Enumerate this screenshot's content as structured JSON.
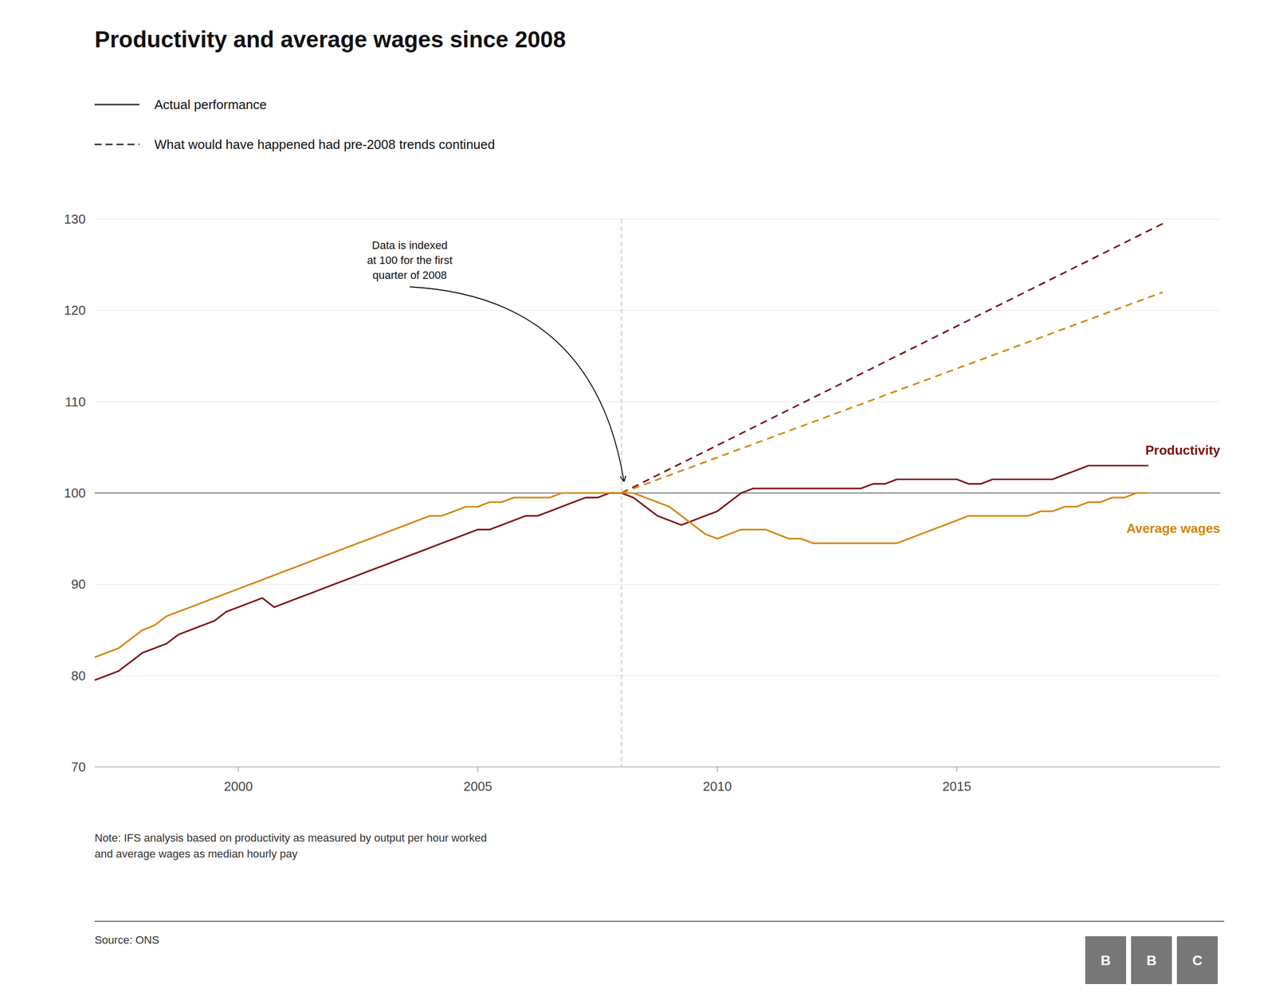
{
  "chart_data": {
    "type": "line",
    "title": "Productivity and average wages since 2008",
    "legend_items": [
      {
        "label": "Actual performance",
        "line_style": "solid"
      },
      {
        "label": "What would have happened had pre-2008 trends continued",
        "line_style": "dashed"
      }
    ],
    "annotation": {
      "text": "Data is indexed\nat 100 for the first\nquarter of 2008",
      "x": 2008.05,
      "y": 101.3
    },
    "note": "Note: IFS analysis based on productivity as measured by output per hour worked\nand average wages as median hourly pay",
    "source": "Source: ONS",
    "logo_letters": [
      "B",
      "B",
      "C"
    ],
    "xlim": [
      1997.0,
      2020.5
    ],
    "ylim": [
      70,
      130
    ],
    "yticks": [
      70,
      80,
      90,
      100,
      110,
      120,
      130
    ],
    "xticks": [
      2000,
      2005,
      2010,
      2015
    ],
    "grid": "y",
    "hline_y": 100,
    "vline_x": 2008.0,
    "series": [
      {
        "name": "Productivity",
        "color": "#7B1515",
        "line_style": "solid",
        "x": [
          1997.0,
          1997.25,
          1997.5,
          1997.75,
          1998.0,
          1998.25,
          1998.5,
          1998.75,
          1999.0,
          1999.25,
          1999.5,
          1999.75,
          2000.0,
          2000.25,
          2000.5,
          2000.75,
          2001.0,
          2001.25,
          2001.5,
          2001.75,
          2002.0,
          2002.25,
          2002.5,
          2002.75,
          2003.0,
          2003.25,
          2003.5,
          2003.75,
          2004.0,
          2004.25,
          2004.5,
          2004.75,
          2005.0,
          2005.25,
          2005.5,
          2005.75,
          2006.0,
          2006.25,
          2006.5,
          2006.75,
          2007.0,
          2007.25,
          2007.5,
          2007.75,
          2008.0,
          2008.25,
          2008.5,
          2008.75,
          2009.0,
          2009.25,
          2009.5,
          2009.75,
          2010.0,
          2010.25,
          2010.5,
          2010.75,
          2011.0,
          2011.25,
          2011.5,
          2011.75,
          2012.0,
          2012.25,
          2012.5,
          2012.75,
          2013.0,
          2013.25,
          2013.5,
          2013.75,
          2014.0,
          2014.25,
          2014.5,
          2014.75,
          2015.0,
          2015.25,
          2015.5,
          2015.75,
          2016.0,
          2016.25,
          2016.5,
          2016.75,
          2017.0,
          2017.25,
          2017.5,
          2017.75,
          2018.0,
          2018.25,
          2018.5,
          2018.75,
          2019.0
        ],
        "values": [
          79.5,
          80.0,
          80.5,
          81.5,
          82.5,
          83.0,
          83.5,
          84.5,
          85.0,
          85.5,
          86.0,
          87.0,
          87.5,
          88.0,
          88.5,
          87.5,
          88.0,
          88.5,
          89.0,
          89.5,
          90.0,
          90.5,
          91.0,
          91.5,
          92.0,
          92.5,
          93.0,
          93.5,
          94.0,
          94.5,
          95.0,
          95.5,
          96.0,
          96.0,
          96.5,
          97.0,
          97.5,
          97.5,
          98.0,
          98.5,
          99.0,
          99.5,
          99.5,
          100.0,
          100.0,
          99.5,
          98.5,
          97.5,
          97.0,
          96.5,
          97.0,
          97.5,
          98.0,
          99.0,
          100.0,
          100.5,
          100.5,
          100.5,
          100.5,
          100.5,
          100.5,
          100.5,
          100.5,
          100.5,
          100.5,
          101.0,
          101.0,
          101.5,
          101.5,
          101.5,
          101.5,
          101.5,
          101.5,
          101.0,
          101.0,
          101.5,
          101.5,
          101.5,
          101.5,
          101.5,
          101.5,
          102.0,
          102.5,
          103.0,
          103.0,
          103.0,
          103.0,
          103.0,
          103.0
        ]
      },
      {
        "name": "Average wages",
        "color": "#D4850A",
        "line_style": "solid",
        "x": [
          1997.0,
          1997.25,
          1997.5,
          1997.75,
          1998.0,
          1998.25,
          1998.5,
          1998.75,
          1999.0,
          1999.25,
          1999.5,
          1999.75,
          2000.0,
          2000.25,
          2000.5,
          2000.75,
          2001.0,
          2001.25,
          2001.5,
          2001.75,
          2002.0,
          2002.25,
          2002.5,
          2002.75,
          2003.0,
          2003.25,
          2003.5,
          2003.75,
          2004.0,
          2004.25,
          2004.5,
          2004.75,
          2005.0,
          2005.25,
          2005.5,
          2005.75,
          2006.0,
          2006.25,
          2006.5,
          2006.75,
          2007.0,
          2007.25,
          2007.5,
          2007.75,
          2008.0,
          2008.25,
          2008.5,
          2008.75,
          2009.0,
          2009.25,
          2009.5,
          2009.75,
          2010.0,
          2010.25,
          2010.5,
          2010.75,
          2011.0,
          2011.25,
          2011.5,
          2011.75,
          2012.0,
          2012.25,
          2012.5,
          2012.75,
          2013.0,
          2013.25,
          2013.5,
          2013.75,
          2014.0,
          2014.25,
          2014.5,
          2014.75,
          2015.0,
          2015.25,
          2015.5,
          2015.75,
          2016.0,
          2016.25,
          2016.5,
          2016.75,
          2017.0,
          2017.25,
          2017.5,
          2017.75,
          2018.0,
          2018.25,
          2018.5,
          2018.75,
          2019.0
        ],
        "values": [
          82.0,
          82.5,
          83.0,
          84.0,
          85.0,
          85.5,
          86.5,
          87.0,
          87.5,
          88.0,
          88.5,
          89.0,
          89.5,
          90.0,
          90.5,
          91.0,
          91.5,
          92.0,
          92.5,
          93.0,
          93.5,
          94.0,
          94.5,
          95.0,
          95.5,
          96.0,
          96.5,
          97.0,
          97.5,
          97.5,
          98.0,
          98.5,
          98.5,
          99.0,
          99.0,
          99.5,
          99.5,
          99.5,
          99.5,
          100.0,
          100.0,
          100.0,
          100.0,
          100.0,
          100.0,
          100.0,
          99.5,
          99.0,
          98.5,
          97.5,
          96.5,
          95.5,
          95.0,
          95.5,
          96.0,
          96.0,
          96.0,
          95.5,
          95.0,
          95.0,
          94.5,
          94.5,
          94.5,
          94.5,
          94.5,
          94.5,
          94.5,
          94.5,
          95.0,
          95.5,
          96.0,
          96.5,
          97.0,
          97.5,
          97.5,
          97.5,
          97.5,
          97.5,
          97.5,
          98.0,
          98.0,
          98.5,
          98.5,
          99.0,
          99.0,
          99.5,
          99.5,
          100.0,
          100.0
        ]
      },
      {
        "color": "#7B1515",
        "line_style": "dashed",
        "x": [
          2008.0,
          2019.3
        ],
        "values": [
          100.0,
          129.5
        ]
      },
      {
        "color": "#D4850A",
        "line_style": "dashed",
        "x": [
          2008.0,
          2019.3
        ],
        "values": [
          100.0,
          122.0
        ]
      }
    ]
  }
}
